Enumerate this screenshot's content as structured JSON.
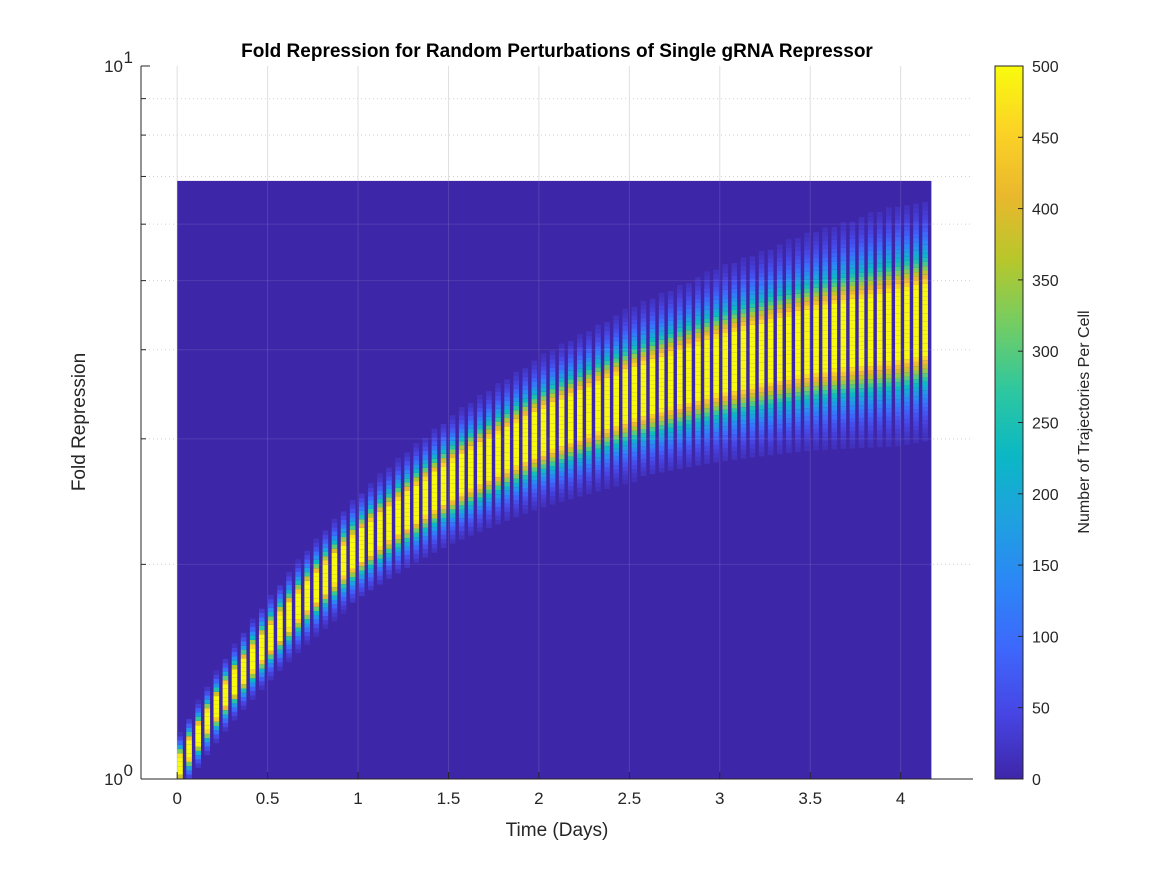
{
  "chart_data": {
    "type": "heatmap",
    "title": "Fold Repression for Random Perturbations of Single gRNA Repressor",
    "xlabel": "Time (Days)",
    "ylabel": "Fold Repression",
    "xlim": [
      -0.2,
      4.4
    ],
    "ylim": [
      1,
      10
    ],
    "yscale": "log",
    "x_ticks": [
      0,
      0.5,
      1,
      1.5,
      2,
      2.5,
      3,
      3.5,
      4
    ],
    "x_tick_labels": [
      "0",
      "0.5",
      "1",
      "1.5",
      "2",
      "2.5",
      "3",
      "3.5",
      "4"
    ],
    "y_ticks": [
      1,
      10
    ],
    "y_tick_base": "10",
    "y_tick_exponents": [
      "0",
      "1"
    ],
    "grid": true,
    "data_extent": {
      "x": [
        0,
        4.17
      ],
      "y": [
        1,
        6.9
      ]
    },
    "time_bins_per_day": 20,
    "distribution": {
      "description_values": "median fold repression per time bin follows curve",
      "median_points": [
        [
          0,
          1.02
        ],
        [
          0.5,
          1.55
        ],
        [
          1,
          2.1
        ],
        [
          1.5,
          2.6
        ],
        [
          2,
          3.05
        ],
        [
          2.5,
          3.45
        ],
        [
          3,
          3.8
        ],
        [
          3.5,
          4.1
        ],
        [
          4.15,
          4.4
        ]
      ],
      "peak_count": 500
    },
    "colorbar": {
      "label": "Number of Trajectories Per Cell",
      "range": [
        0,
        500
      ],
      "ticks": [
        0,
        50,
        100,
        150,
        200,
        250,
        300,
        350,
        400,
        450,
        500
      ],
      "tick_labels": [
        "0",
        "50",
        "100",
        "150",
        "200",
        "250",
        "300",
        "350",
        "400",
        "450",
        "500"
      ]
    },
    "colormap": [
      "#3e26a8",
      "#4745e4",
      "#3e67fc",
      "#2c86f6",
      "#1fa1e0",
      "#0bb8c4",
      "#2ec79f",
      "#72cd64",
      "#b7c72b",
      "#eab82d",
      "#fbd325",
      "#f9fb0e"
    ]
  }
}
